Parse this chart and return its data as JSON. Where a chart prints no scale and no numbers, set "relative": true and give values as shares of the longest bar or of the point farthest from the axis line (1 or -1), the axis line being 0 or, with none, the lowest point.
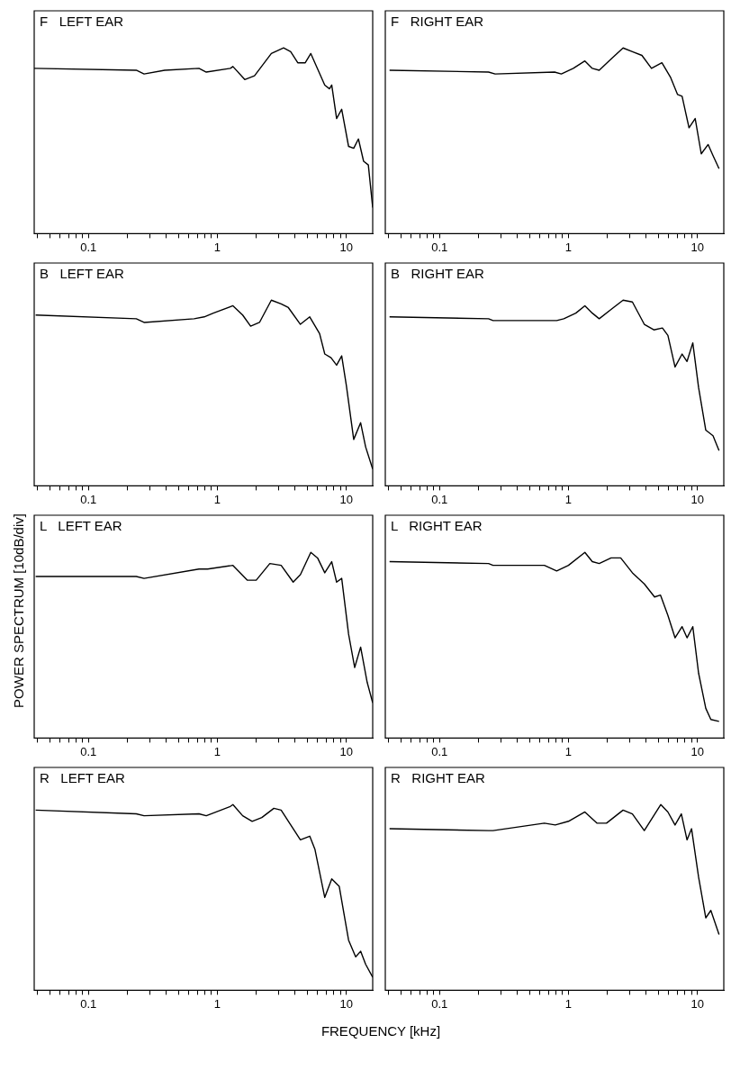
{
  "chart_data": [
    {
      "type": "line",
      "title": "F   LEFT EAR",
      "relative": true,
      "color": "#000000",
      "xlim": [
        0.038,
        16
      ],
      "log": "x",
      "xticks": [
        {
          "value": 0.04,
          "label": null
        },
        {
          "value": 0.05,
          "label": null
        },
        {
          "value": 0.06,
          "label": null
        },
        {
          "value": 0.07,
          "label": null
        },
        {
          "value": 0.08,
          "label": null
        },
        {
          "value": 0.09,
          "label": null
        },
        0.1,
        {
          "value": 0.2,
          "label": null
        },
        {
          "value": 0.3,
          "label": null
        },
        {
          "value": 0.4,
          "label": null
        },
        {
          "value": 0.5,
          "label": null
        },
        {
          "value": 0.6,
          "label": null
        },
        {
          "value": 0.7,
          "label": null
        },
        {
          "value": 0.8,
          "label": null
        },
        {
          "value": 0.9,
          "label": null
        },
        1,
        {
          "value": 2,
          "label": null
        },
        {
          "value": 3,
          "label": null
        },
        {
          "value": 4,
          "label": null
        },
        {
          "value": 5,
          "label": null
        },
        {
          "value": 6,
          "label": null
        },
        {
          "value": 7,
          "label": null
        },
        {
          "value": 8,
          "label": null
        },
        {
          "value": 9,
          "label": null
        },
        10
      ],
      "x": [
        0.038,
        0.235,
        0.27,
        0.39,
        0.72,
        0.82,
        1.26,
        1.32,
        1.63,
        1.94,
        2.62,
        3.26,
        3.7,
        4.2,
        4.8,
        5.3,
        6.8,
        7.4,
        7.7,
        8.4,
        9.2,
        10.4,
        11.4,
        12.4,
        13.6,
        14.8,
        16
      ],
      "values": [
        0.89,
        0.88,
        0.86,
        0.88,
        0.89,
        0.87,
        0.89,
        0.9,
        0.83,
        0.85,
        0.97,
        1,
        0.98,
        0.92,
        0.92,
        0.97,
        0.8,
        0.78,
        0.8,
        0.62,
        0.67,
        0.47,
        0.46,
        0.51,
        0.39,
        0.37,
        0.14
      ]
    },
    {
      "type": "line",
      "title": "F   RIGHT EAR",
      "relative": true,
      "color": "#000000",
      "xlim": [
        0.038,
        16
      ],
      "log": "x",
      "xticks": [
        {
          "value": 0.04,
          "label": null
        },
        {
          "value": 0.05,
          "label": null
        },
        {
          "value": 0.06,
          "label": null
        },
        {
          "value": 0.07,
          "label": null
        },
        {
          "value": 0.08,
          "label": null
        },
        {
          "value": 0.09,
          "label": null
        },
        0.1,
        {
          "value": 0.2,
          "label": null
        },
        {
          "value": 0.3,
          "label": null
        },
        {
          "value": 0.4,
          "label": null
        },
        {
          "value": 0.5,
          "label": null
        },
        {
          "value": 0.6,
          "label": null
        },
        {
          "value": 0.7,
          "label": null
        },
        {
          "value": 0.8,
          "label": null
        },
        {
          "value": 0.9,
          "label": null
        },
        1,
        {
          "value": 2,
          "label": null
        },
        {
          "value": 3,
          "label": null
        },
        {
          "value": 4,
          "label": null
        },
        {
          "value": 5,
          "label": null
        },
        {
          "value": 6,
          "label": null
        },
        {
          "value": 7,
          "label": null
        },
        {
          "value": 8,
          "label": null
        },
        {
          "value": 9,
          "label": null
        },
        10
      ],
      "x": [
        0.041,
        0.24,
        0.27,
        0.78,
        0.88,
        1.09,
        1.34,
        1.53,
        1.73,
        2.14,
        2.65,
        3.13,
        3.71,
        4.4,
        5.3,
        6.2,
        7.0,
        7.6,
        8.6,
        9.6,
        10.7,
        12.1,
        13.2,
        14.7
      ],
      "values": [
        0.88,
        0.87,
        0.86,
        0.87,
        0.86,
        0.89,
        0.93,
        0.89,
        0.88,
        0.94,
        1,
        0.98,
        0.96,
        0.89,
        0.92,
        0.84,
        0.75,
        0.74,
        0.57,
        0.62,
        0.43,
        0.48,
        0.42,
        0.35
      ]
    },
    {
      "type": "line",
      "title": "B   LEFT EAR",
      "relative": true,
      "color": "#000000",
      "xlim": [
        0.038,
        16
      ],
      "log": "x",
      "xticks": [
        {
          "value": 0.04,
          "label": null
        },
        {
          "value": 0.05,
          "label": null
        },
        {
          "value": 0.06,
          "label": null
        },
        {
          "value": 0.07,
          "label": null
        },
        {
          "value": 0.08,
          "label": null
        },
        {
          "value": 0.09,
          "label": null
        },
        0.1,
        {
          "value": 0.2,
          "label": null
        },
        {
          "value": 0.3,
          "label": null
        },
        {
          "value": 0.4,
          "label": null
        },
        {
          "value": 0.5,
          "label": null
        },
        {
          "value": 0.6,
          "label": null
        },
        {
          "value": 0.7,
          "label": null
        },
        {
          "value": 0.8,
          "label": null
        },
        {
          "value": 0.9,
          "label": null
        },
        1,
        {
          "value": 2,
          "label": null
        },
        {
          "value": 3,
          "label": null
        },
        {
          "value": 4,
          "label": null
        },
        {
          "value": 5,
          "label": null
        },
        {
          "value": 6,
          "label": null
        },
        {
          "value": 7,
          "label": null
        },
        {
          "value": 8,
          "label": null
        },
        {
          "value": 9,
          "label": null
        },
        10
      ],
      "x": [
        0.039,
        0.235,
        0.27,
        0.66,
        0.79,
        0.93,
        1.32,
        1.57,
        1.81,
        2.12,
        2.62,
        3.12,
        3.55,
        4.4,
        5.2,
        6.2,
        6.8,
        7.6,
        8.4,
        9.2,
        10.0,
        11.4,
        12.9,
        14.1,
        16
      ],
      "values": [
        0.92,
        0.9,
        0.88,
        0.9,
        0.91,
        0.93,
        0.97,
        0.92,
        0.86,
        0.88,
        1,
        0.98,
        0.96,
        0.87,
        0.91,
        0.82,
        0.71,
        0.69,
        0.65,
        0.7,
        0.54,
        0.25,
        0.34,
        0.21,
        0.09
      ]
    },
    {
      "type": "line",
      "title": "B   RIGHT EAR",
      "relative": true,
      "color": "#000000",
      "xlim": [
        0.038,
        16
      ],
      "log": "x",
      "xticks": [
        {
          "value": 0.04,
          "label": null
        },
        {
          "value": 0.05,
          "label": null
        },
        {
          "value": 0.06,
          "label": null
        },
        {
          "value": 0.07,
          "label": null
        },
        {
          "value": 0.08,
          "label": null
        },
        {
          "value": 0.09,
          "label": null
        },
        0.1,
        {
          "value": 0.2,
          "label": null
        },
        {
          "value": 0.3,
          "label": null
        },
        {
          "value": 0.4,
          "label": null
        },
        {
          "value": 0.5,
          "label": null
        },
        {
          "value": 0.6,
          "label": null
        },
        {
          "value": 0.7,
          "label": null
        },
        {
          "value": 0.8,
          "label": null
        },
        {
          "value": 0.9,
          "label": null
        },
        1,
        {
          "value": 2,
          "label": null
        },
        {
          "value": 3,
          "label": null
        },
        {
          "value": 4,
          "label": null
        },
        {
          "value": 5,
          "label": null
        },
        {
          "value": 6,
          "label": null
        },
        {
          "value": 7,
          "label": null
        },
        {
          "value": 8,
          "label": null
        },
        {
          "value": 9,
          "label": null
        },
        10
      ],
      "x": [
        0.041,
        0.24,
        0.26,
        0.81,
        0.92,
        1.14,
        1.34,
        1.53,
        1.73,
        2.14,
        2.65,
        3.13,
        3.87,
        4.59,
        5.35,
        5.9,
        6.7,
        7.6,
        8.3,
        9.2,
        10.2,
        11.6,
        13.2,
        14.7
      ],
      "values": [
        0.91,
        0.9,
        0.89,
        0.89,
        0.9,
        0.93,
        0.97,
        0.93,
        0.9,
        0.95,
        1,
        0.99,
        0.87,
        0.84,
        0.85,
        0.81,
        0.64,
        0.71,
        0.67,
        0.77,
        0.53,
        0.3,
        0.27,
        0.19
      ]
    },
    {
      "type": "line",
      "title": "L   LEFT EAR",
      "ylabel": "POWER SPECTRUM [10dB/div]",
      "relative": true,
      "color": "#000000",
      "xlim": [
        0.038,
        16
      ],
      "log": "x",
      "xticks": [
        {
          "value": 0.04,
          "label": null
        },
        {
          "value": 0.05,
          "label": null
        },
        {
          "value": 0.06,
          "label": null
        },
        {
          "value": 0.07,
          "label": null
        },
        {
          "value": 0.08,
          "label": null
        },
        {
          "value": 0.09,
          "label": null
        },
        0.1,
        {
          "value": 0.2,
          "label": null
        },
        {
          "value": 0.3,
          "label": null
        },
        {
          "value": 0.4,
          "label": null
        },
        {
          "value": 0.5,
          "label": null
        },
        {
          "value": 0.6,
          "label": null
        },
        {
          "value": 0.7,
          "label": null
        },
        {
          "value": 0.8,
          "label": null
        },
        {
          "value": 0.9,
          "label": null
        },
        1,
        {
          "value": 2,
          "label": null
        },
        {
          "value": 3,
          "label": null
        },
        {
          "value": 4,
          "label": null
        },
        {
          "value": 5,
          "label": null
        },
        {
          "value": 6,
          "label": null
        },
        {
          "value": 7,
          "label": null
        },
        {
          "value": 8,
          "label": null
        },
        {
          "value": 9,
          "label": null
        },
        10
      ],
      "x": [
        0.039,
        0.235,
        0.27,
        0.72,
        0.84,
        1.32,
        1.71,
        2.0,
        2.55,
        3.12,
        3.87,
        4.4,
        5.3,
        5.98,
        6.8,
        7.7,
        8.4,
        9.2,
        10.4,
        11.6,
        12.9,
        14.5,
        16
      ],
      "values": [
        0.87,
        0.87,
        0.86,
        0.91,
        0.91,
        0.93,
        0.85,
        0.85,
        0.94,
        0.93,
        0.84,
        0.88,
        1,
        0.97,
        0.89,
        0.95,
        0.84,
        0.86,
        0.56,
        0.38,
        0.49,
        0.3,
        0.19
      ]
    },
    {
      "type": "line",
      "title": "L   RIGHT EAR",
      "relative": true,
      "color": "#000000",
      "xlim": [
        0.038,
        16
      ],
      "log": "x",
      "xticks": [
        {
          "value": 0.04,
          "label": null
        },
        {
          "value": 0.05,
          "label": null
        },
        {
          "value": 0.06,
          "label": null
        },
        {
          "value": 0.07,
          "label": null
        },
        {
          "value": 0.08,
          "label": null
        },
        {
          "value": 0.09,
          "label": null
        },
        0.1,
        {
          "value": 0.2,
          "label": null
        },
        {
          "value": 0.3,
          "label": null
        },
        {
          "value": 0.4,
          "label": null
        },
        {
          "value": 0.5,
          "label": null
        },
        {
          "value": 0.6,
          "label": null
        },
        {
          "value": 0.7,
          "label": null
        },
        {
          "value": 0.8,
          "label": null
        },
        {
          "value": 0.9,
          "label": null
        },
        1,
        {
          "value": 2,
          "label": null
        },
        {
          "value": 3,
          "label": null
        },
        {
          "value": 4,
          "label": null
        },
        {
          "value": 5,
          "label": null
        },
        {
          "value": 6,
          "label": null
        },
        {
          "value": 7,
          "label": null
        },
        {
          "value": 8,
          "label": null
        },
        {
          "value": 9,
          "label": null
        },
        10
      ],
      "x": [
        0.041,
        0.24,
        0.26,
        0.65,
        0.81,
        1.0,
        1.34,
        1.53,
        1.73,
        2.14,
        2.54,
        3.13,
        3.87,
        4.65,
        5.17,
        5.9,
        6.7,
        7.6,
        8.3,
        9.2,
        10.2,
        11.6,
        12.7,
        14.7
      ],
      "values": [
        0.95,
        0.94,
        0.93,
        0.93,
        0.9,
        0.93,
        1,
        0.95,
        0.94,
        0.97,
        0.97,
        0.89,
        0.83,
        0.76,
        0.77,
        0.66,
        0.54,
        0.6,
        0.54,
        0.6,
        0.35,
        0.16,
        0.1,
        0.09
      ]
    },
    {
      "type": "line",
      "title": "R   LEFT EAR",
      "xlabel": "FREQUENCY [kHz]",
      "relative": true,
      "color": "#000000",
      "xlim": [
        0.038,
        16
      ],
      "log": "x",
      "xticks": [
        {
          "value": 0.04,
          "label": null
        },
        {
          "value": 0.05,
          "label": null
        },
        {
          "value": 0.06,
          "label": null
        },
        {
          "value": 0.07,
          "label": null
        },
        {
          "value": 0.08,
          "label": null
        },
        {
          "value": 0.09,
          "label": null
        },
        0.1,
        {
          "value": 0.2,
          "label": null
        },
        {
          "value": 0.3,
          "label": null
        },
        {
          "value": 0.4,
          "label": null
        },
        {
          "value": 0.5,
          "label": null
        },
        {
          "value": 0.6,
          "label": null
        },
        {
          "value": 0.7,
          "label": null
        },
        {
          "value": 0.8,
          "label": null
        },
        {
          "value": 0.9,
          "label": null
        },
        1,
        {
          "value": 2,
          "label": null
        },
        {
          "value": 3,
          "label": null
        },
        {
          "value": 4,
          "label": null
        },
        {
          "value": 5,
          "label": null
        },
        {
          "value": 6,
          "label": null
        },
        {
          "value": 7,
          "label": null
        },
        {
          "value": 8,
          "label": null
        },
        {
          "value": 9,
          "label": null
        },
        10
      ],
      "x": [
        0.039,
        0.235,
        0.27,
        0.72,
        0.82,
        1.26,
        1.32,
        1.57,
        1.86,
        2.21,
        2.74,
        3.12,
        4.4,
        5.2,
        5.7,
        6.8,
        7.7,
        8.8,
        10.4,
        11.8,
        12.9,
        14.1,
        16
      ],
      "values": [
        0.97,
        0.95,
        0.94,
        0.95,
        0.94,
        0.99,
        1,
        0.94,
        0.91,
        0.93,
        0.98,
        0.97,
        0.81,
        0.83,
        0.76,
        0.5,
        0.6,
        0.56,
        0.27,
        0.18,
        0.21,
        0.14,
        0.07
      ]
    },
    {
      "type": "line",
      "title": "R   RIGHT EAR",
      "relative": true,
      "color": "#000000",
      "xlim": [
        0.038,
        16
      ],
      "log": "x",
      "xticks": [
        {
          "value": 0.04,
          "label": null
        },
        {
          "value": 0.05,
          "label": null
        },
        {
          "value": 0.06,
          "label": null
        },
        {
          "value": 0.07,
          "label": null
        },
        {
          "value": 0.08,
          "label": null
        },
        {
          "value": 0.09,
          "label": null
        },
        0.1,
        {
          "value": 0.2,
          "label": null
        },
        {
          "value": 0.3,
          "label": null
        },
        {
          "value": 0.4,
          "label": null
        },
        {
          "value": 0.5,
          "label": null
        },
        {
          "value": 0.6,
          "label": null
        },
        {
          "value": 0.7,
          "label": null
        },
        {
          "value": 0.8,
          "label": null
        },
        {
          "value": 0.9,
          "label": null
        },
        1,
        {
          "value": 2,
          "label": null
        },
        {
          "value": 3,
          "label": null
        },
        {
          "value": 4,
          "label": null
        },
        {
          "value": 5,
          "label": null
        },
        {
          "value": 6,
          "label": null
        },
        {
          "value": 7,
          "label": null
        },
        {
          "value": 8,
          "label": null
        },
        {
          "value": 9,
          "label": null
        },
        10
      ],
      "x": [
        0.041,
        0.24,
        0.26,
        0.65,
        0.79,
        1.0,
        1.34,
        1.66,
        1.97,
        2.65,
        3.13,
        3.87,
        5.2,
        5.9,
        6.7,
        7.5,
        8.3,
        9.0,
        10.2,
        11.6,
        12.7,
        14.7
      ],
      "values": [
        0.87,
        0.86,
        0.86,
        0.9,
        0.89,
        0.91,
        0.96,
        0.9,
        0.9,
        0.97,
        0.95,
        0.86,
        1,
        0.96,
        0.89,
        0.95,
        0.81,
        0.87,
        0.61,
        0.39,
        0.43,
        0.3
      ]
    }
  ]
}
